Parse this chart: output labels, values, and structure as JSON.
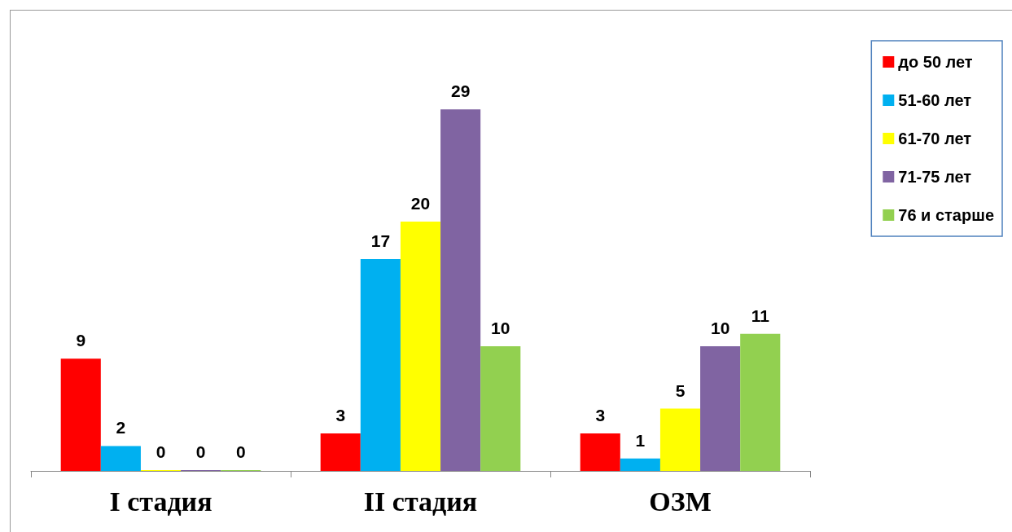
{
  "chart_data": {
    "type": "bar",
    "categories": [
      "I стадия",
      "II стадия",
      "ОЗМ"
    ],
    "series": [
      {
        "name": "до 50 лет",
        "color": "#ff0000",
        "values": [
          9,
          3,
          3
        ]
      },
      {
        "name": "51-60 лет",
        "color": "#00b0f0",
        "values": [
          2,
          17,
          1
        ]
      },
      {
        "name": "61-70 лет",
        "color": "#ffff00",
        "values": [
          0,
          20,
          5
        ]
      },
      {
        "name": "71-75 лет",
        "color": "#8064a2",
        "values": [
          0,
          29,
          10
        ]
      },
      {
        "name": "76 и старше",
        "color": "#92d050",
        "values": [
          0,
          10,
          11
        ]
      }
    ],
    "data_labels": true,
    "legend": "top right"
  }
}
